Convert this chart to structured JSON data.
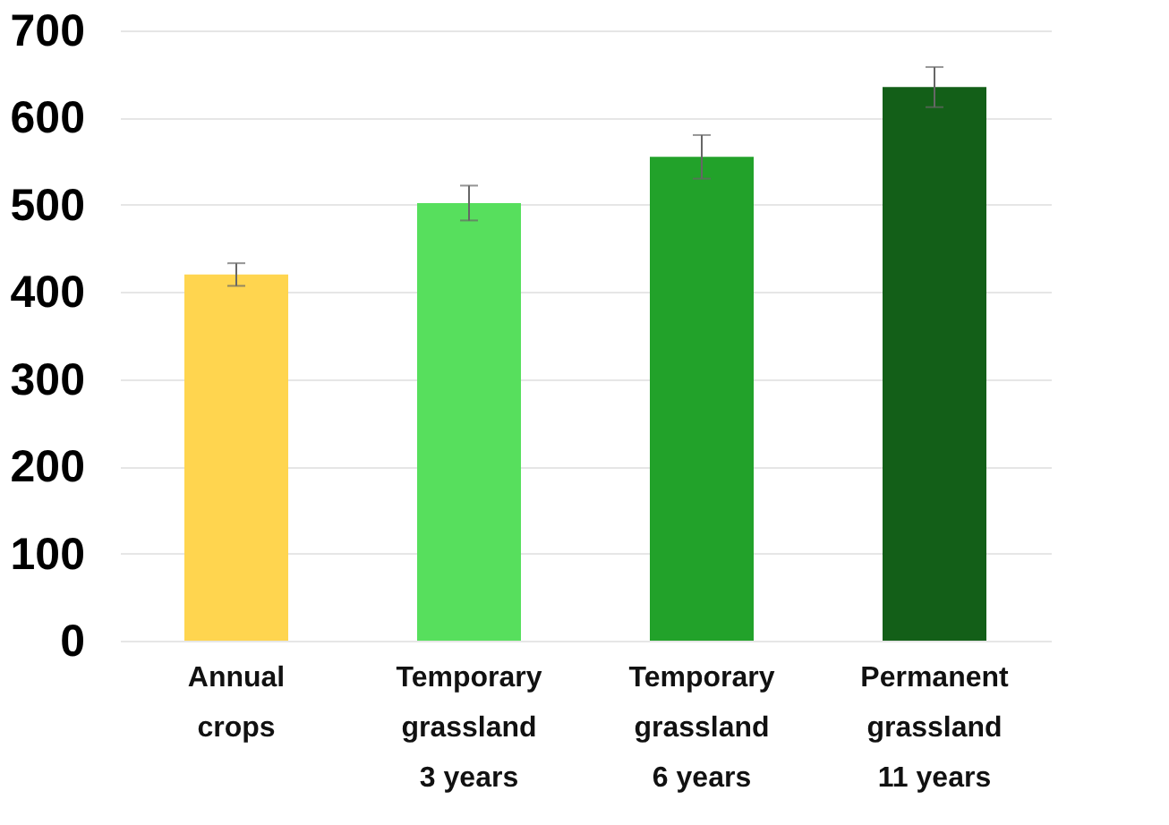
{
  "chart_data": {
    "type": "bar",
    "categories": [
      "Annual\ncrops",
      "Temporary\ngrassland\n3 years",
      "Temporary\ngrassland\n6 years",
      "Permanent\ngrassland\n11 years"
    ],
    "values": [
      420,
      502,
      555,
      635
    ],
    "errors": [
      13,
      20,
      25,
      23
    ],
    "colors": [
      "#ffd54f",
      "#57df5d",
      "#22a22a",
      "#135f18"
    ],
    "ylim": [
      0,
      700
    ],
    "yticks": [
      0,
      100,
      200,
      300,
      400,
      500,
      600,
      700
    ],
    "grid": "y"
  }
}
